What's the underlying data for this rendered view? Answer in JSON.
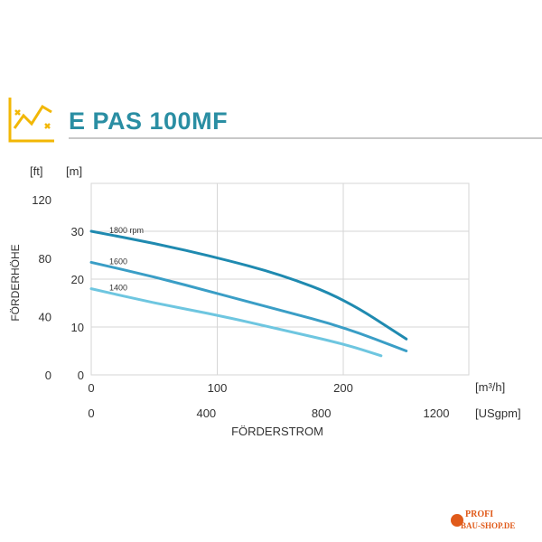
{
  "header": {
    "title": "E PAS 100MF",
    "icon": "line-chart-icon",
    "accent_color": "#f2b705",
    "title_color": "#2a8ea3"
  },
  "watermark": {
    "line1": "PROFI",
    "line2": "BAU-SHOP.DE",
    "color": "#e05a1a"
  },
  "chart_data": {
    "type": "line",
    "title": "",
    "ylabel": "FÖRDERHÖHE",
    "xlabel": "FÖRDERSTROM",
    "y_left_unit": "[ft]",
    "y_right_unit": "[m]",
    "x_top_unit": "[m³/h]",
    "x_bottom_unit": "[USgpm]",
    "x_m3h_ticks": [
      "0",
      "100",
      "200"
    ],
    "x_usgpm_ticks": [
      "0",
      "400",
      "800",
      "1200"
    ],
    "y_m_ticks": [
      "0",
      "10",
      "20",
      "30"
    ],
    "y_ft_ticks": [
      "0",
      "40",
      "80",
      "120"
    ],
    "xlim": [
      0,
      300
    ],
    "ylim_m": [
      0,
      40
    ],
    "grid": true,
    "series": [
      {
        "name": "1800 rpm",
        "color": "#1f8ab0",
        "x": [
          0,
          50,
          100,
          150,
          200,
          250
        ],
        "y": [
          30,
          27.5,
          24.5,
          21,
          16,
          7.5
        ]
      },
      {
        "name": "1600",
        "color": "#3a9ec6",
        "x": [
          0,
          50,
          100,
          150,
          200,
          250
        ],
        "y": [
          23.5,
          20.5,
          17,
          13.5,
          10,
          5
        ]
      },
      {
        "name": "1400",
        "color": "#6ec6e0",
        "x": [
          0,
          50,
          100,
          150,
          200,
          230
        ],
        "y": [
          18,
          15,
          12.5,
          9.5,
          6.5,
          4
        ]
      }
    ]
  }
}
